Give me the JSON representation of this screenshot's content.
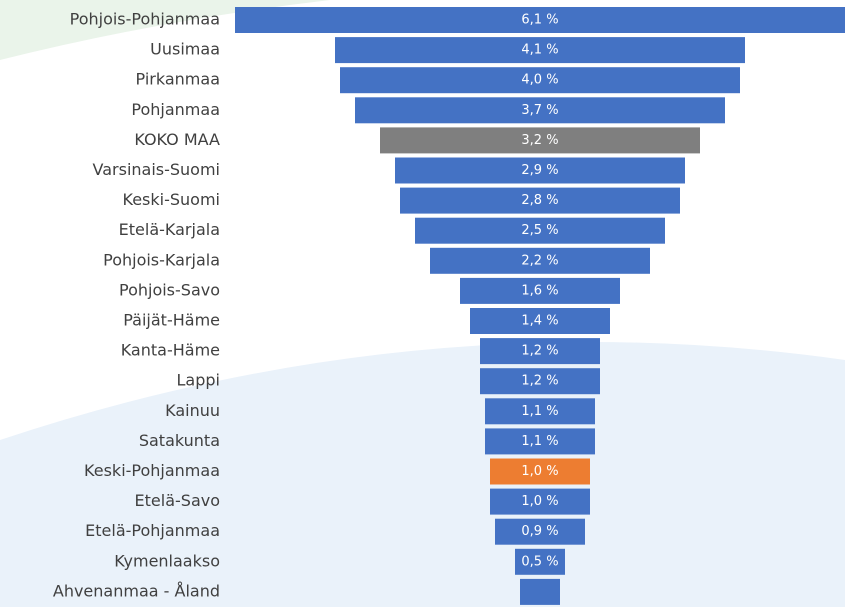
{
  "chart_data": {
    "type": "funnel",
    "categories": [
      "Pohjois-Pohjanmaa",
      "Uusimaa",
      "Pirkanmaa",
      "Pohjanmaa",
      "KOKO MAA",
      "Varsinais-Suomi",
      "Keski-Suomi",
      "Etelä-Karjala",
      "Pohjois-Karjala",
      "Pohjois-Savo",
      "Päijät-Häme",
      "Kanta-Häme",
      "Lappi",
      "Kainuu",
      "Satakunta",
      "Keski-Pohjanmaa",
      "Etelä-Savo",
      "Etelä-Pohjanmaa",
      "Kymenlaakso",
      "Ahvenanmaa - Åland"
    ],
    "values": [
      6.1,
      4.1,
      4.0,
      3.7,
      3.2,
      2.9,
      2.8,
      2.5,
      2.2,
      1.6,
      1.4,
      1.2,
      1.2,
      1.1,
      1.1,
      1.0,
      1.0,
      0.9,
      0.5,
      0.4
    ],
    "value_labels": [
      "6,1 %",
      "4,1 %",
      "4,0 %",
      "3,7 %",
      "3,2 %",
      "2,9 %",
      "2,8 %",
      "2,5 %",
      "2,2 %",
      "1,6 %",
      "1,4 %",
      "1,2 %",
      "1,2 %",
      "1,1 %",
      "1,1 %",
      "1,0 %",
      "1,0 %",
      "0,9 %",
      "0,5 %",
      null
    ],
    "colors": [
      "#4472c4",
      "#4472c4",
      "#4472c4",
      "#4472c4",
      "#7f7f7f",
      "#4472c4",
      "#4472c4",
      "#4472c4",
      "#4472c4",
      "#4472c4",
      "#4472c4",
      "#4472c4",
      "#4472c4",
      "#4472c4",
      "#4472c4",
      "#ed7d31",
      "#4472c4",
      "#4472c4",
      "#4472c4",
      "#4472c4"
    ]
  }
}
